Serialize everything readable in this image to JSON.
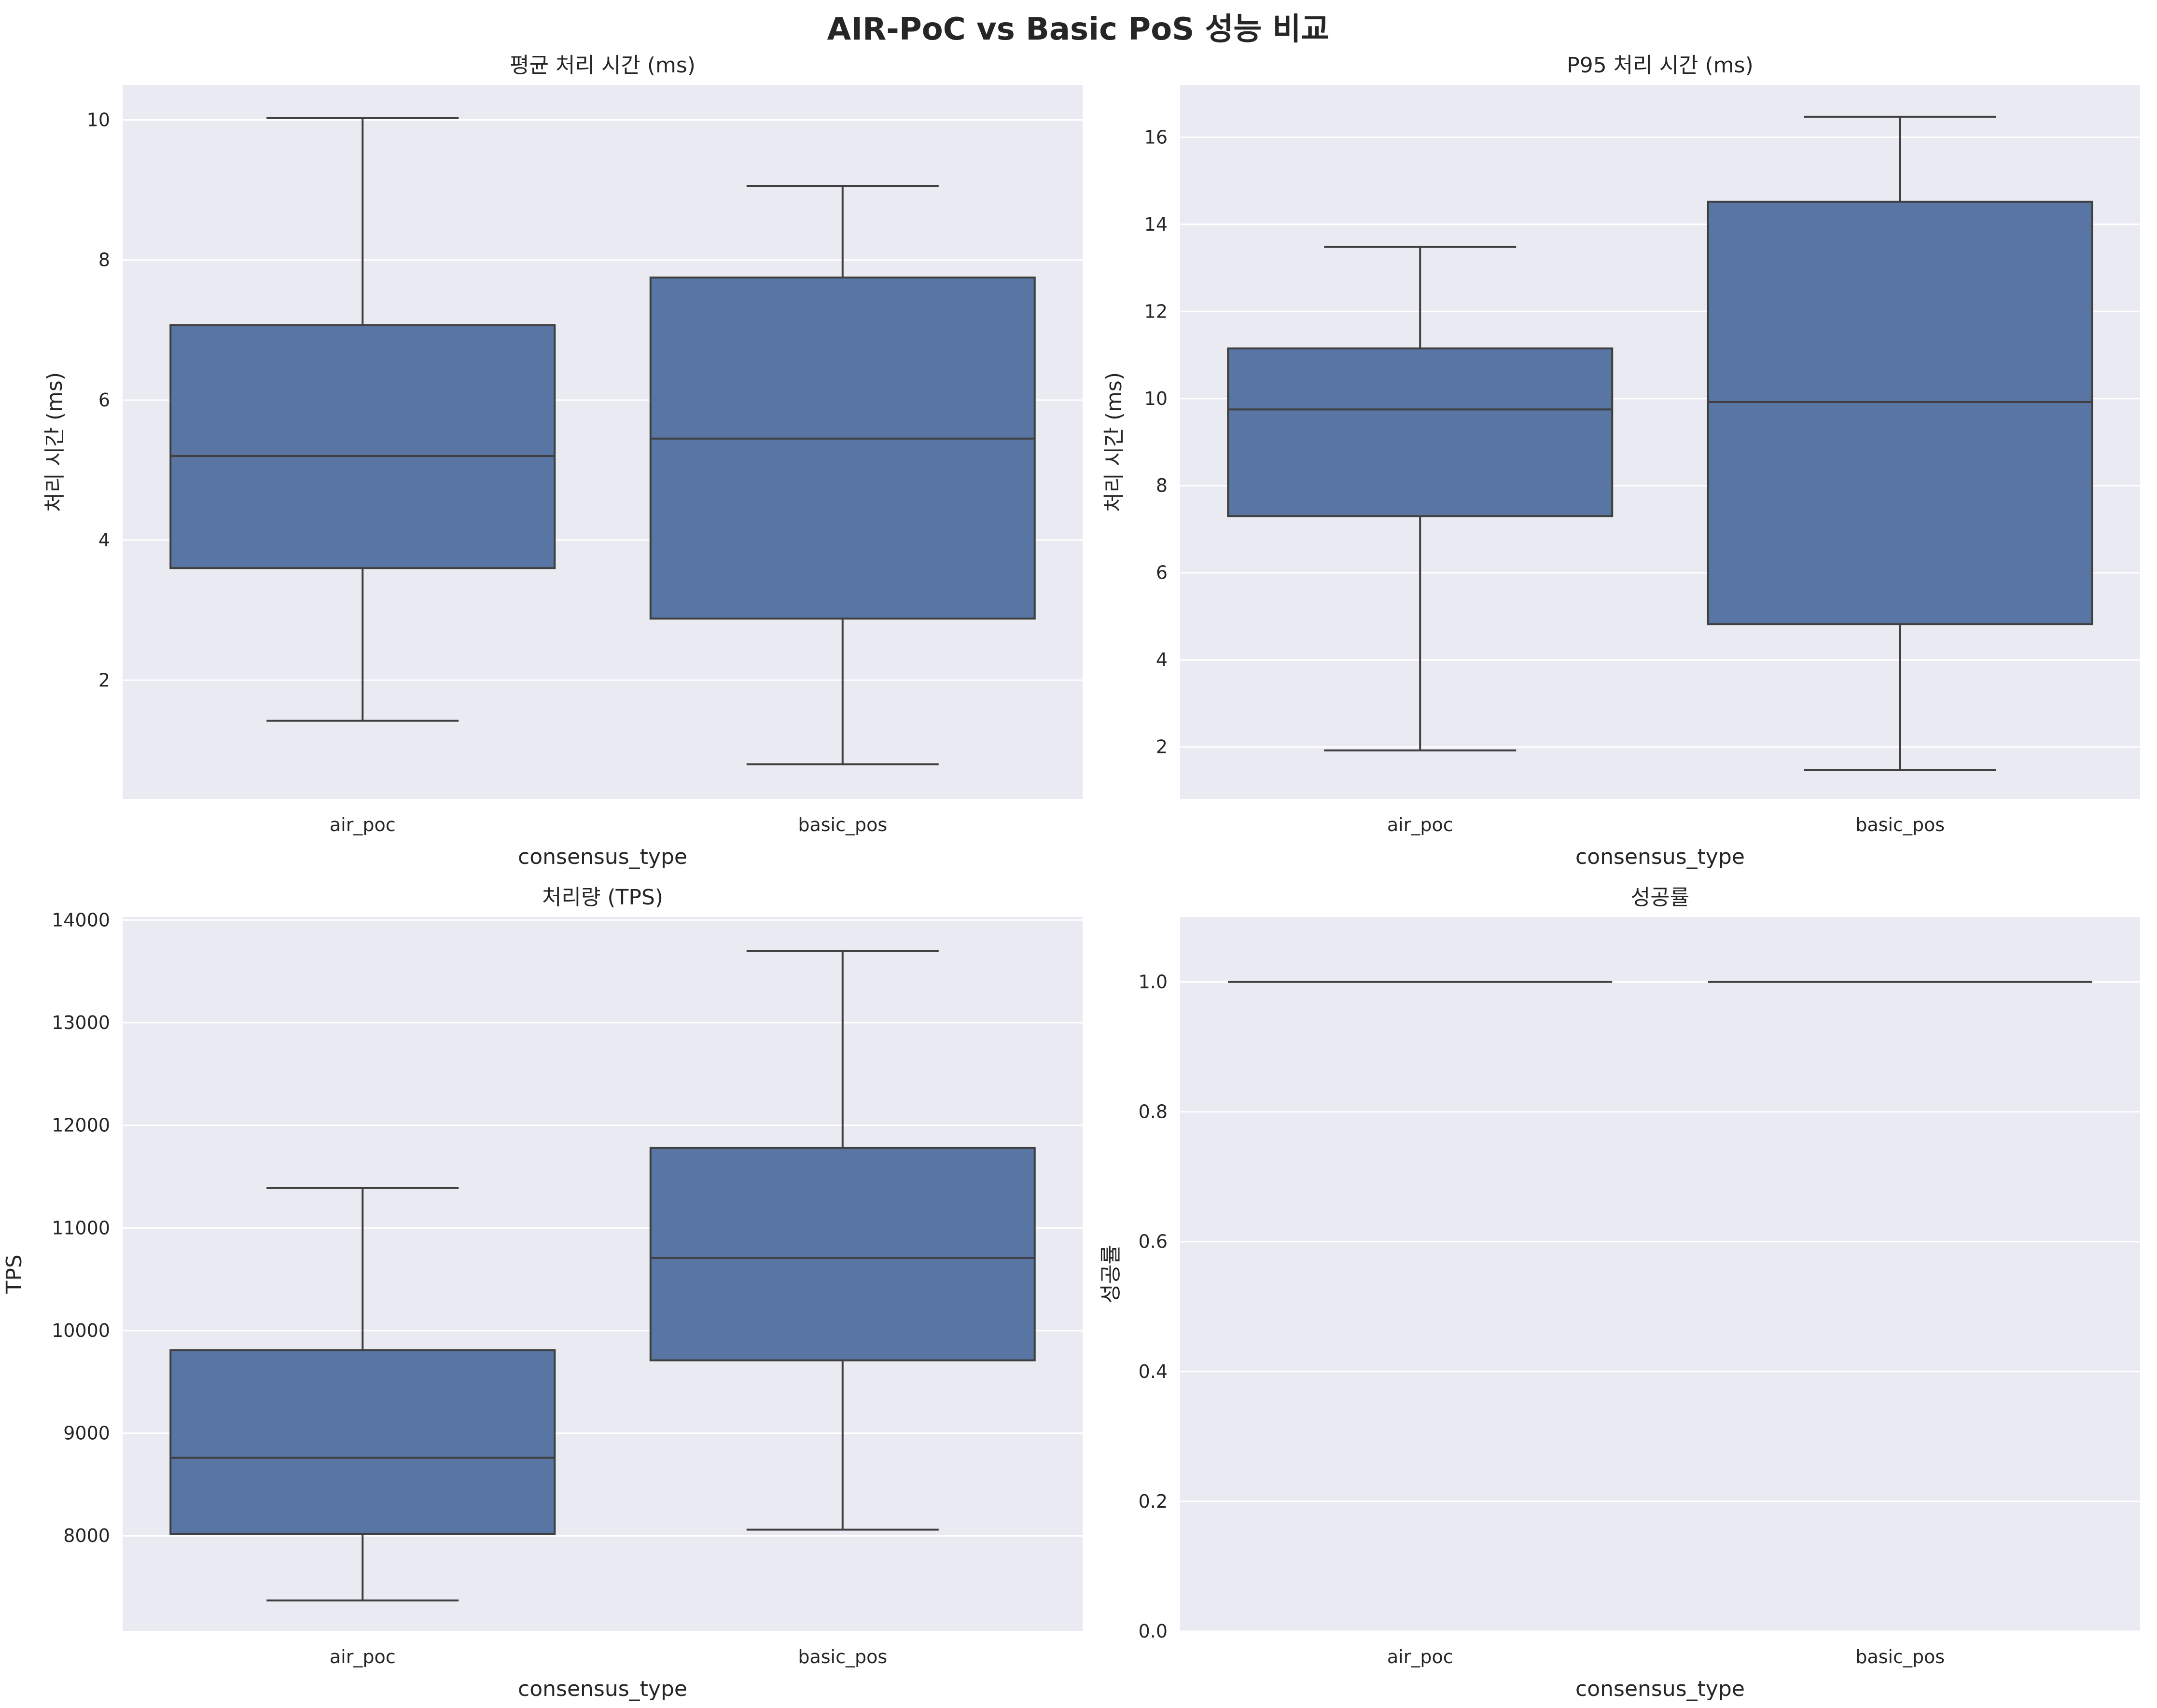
{
  "figure": {
    "title": "AIR-PoC vs Basic PoS 성능 비교",
    "face_color": "#eaeaf2",
    "grid_color": "#ffffff",
    "box_color": "#5875a4",
    "line_color": "#3f3f3f"
  },
  "chart_data": [
    {
      "type": "box",
      "title": "평균 처리 시간 (ms)",
      "xlabel": "consensus_type",
      "ylabel": "처리 시간 (ms)",
      "categories": [
        "air_poc",
        "basic_pos"
      ],
      "ylim": [
        0.3,
        10.5
      ],
      "yticks": [
        2,
        4,
        6,
        8,
        10
      ],
      "ytick_labels": [
        "2",
        "4",
        "6",
        "8",
        "10"
      ],
      "boxes": [
        {
          "whislo": 1.42,
          "q1": 3.6,
          "med": 5.2,
          "q3": 7.07,
          "whishi": 10.03
        },
        {
          "whislo": 0.8,
          "q1": 2.88,
          "med": 5.45,
          "q3": 7.75,
          "whishi": 9.06
        }
      ],
      "grid": true
    },
    {
      "type": "box",
      "title": "P95 처리 시간 (ms)",
      "xlabel": "consensus_type",
      "ylabel": "처리 시간 (ms)",
      "categories": [
        "air_poc",
        "basic_pos"
      ],
      "ylim": [
        0.8,
        17.2
      ],
      "yticks": [
        2,
        4,
        6,
        8,
        10,
        12,
        14,
        16
      ],
      "ytick_labels": [
        "2",
        "4",
        "6",
        "8",
        "10",
        "12",
        "14",
        "16"
      ],
      "boxes": [
        {
          "whislo": 1.92,
          "q1": 7.3,
          "med": 9.75,
          "q3": 11.15,
          "whishi": 13.48
        },
        {
          "whislo": 1.47,
          "q1": 4.82,
          "med": 9.92,
          "q3": 14.52,
          "whishi": 16.47
        }
      ],
      "grid": true
    },
    {
      "type": "box",
      "title": "처리량 (TPS)",
      "xlabel": "consensus_type",
      "ylabel": "TPS",
      "categories": [
        "air_poc",
        "basic_pos"
      ],
      "ylim": [
        7070,
        14030
      ],
      "yticks": [
        8000,
        9000,
        10000,
        11000,
        12000,
        13000,
        14000
      ],
      "ytick_labels": [
        "8000",
        "9000",
        "10000",
        "11000",
        "12000",
        "13000",
        "14000"
      ],
      "boxes": [
        {
          "whislo": 7370,
          "q1": 8020,
          "med": 8760,
          "q3": 9810,
          "whishi": 11390
        },
        {
          "whislo": 8060,
          "q1": 9710,
          "med": 10710,
          "q3": 11780,
          "whishi": 13700
        }
      ],
      "grid": true
    },
    {
      "type": "box",
      "title": "성공률",
      "xlabel": "consensus_type",
      "ylabel": "성공률",
      "categories": [
        "air_poc",
        "basic_pos"
      ],
      "ylim": [
        0.0,
        1.1
      ],
      "yticks": [
        0.0,
        0.2,
        0.4,
        0.6,
        0.8,
        1.0
      ],
      "ytick_labels": [
        "0.0",
        "0.2",
        "0.4",
        "0.6",
        "0.8",
        "1.0"
      ],
      "boxes": [
        {
          "whislo": 1.0,
          "q1": 1.0,
          "med": 1.0,
          "q3": 1.0,
          "whishi": 1.0
        },
        {
          "whislo": 1.0,
          "q1": 1.0,
          "med": 1.0,
          "q3": 1.0,
          "whishi": 1.0
        }
      ],
      "grid": true
    }
  ]
}
